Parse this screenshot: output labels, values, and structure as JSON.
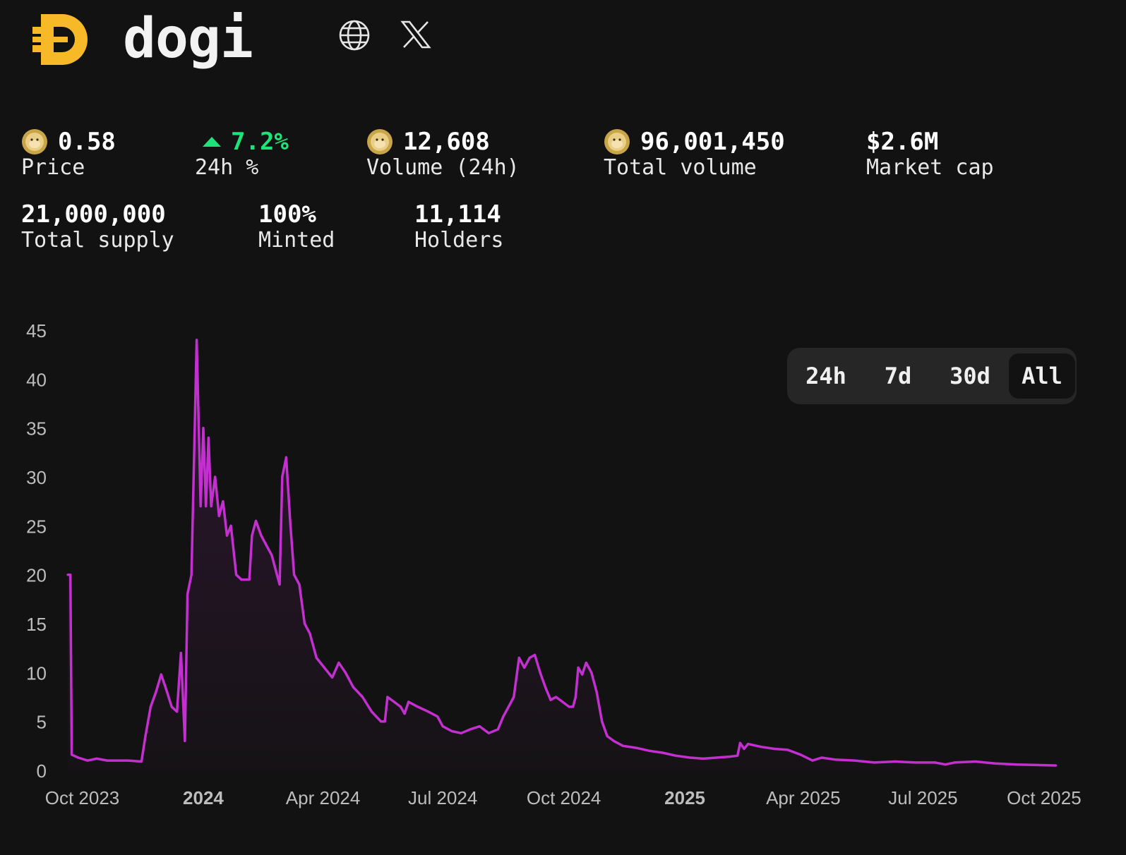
{
  "header": {
    "brand": "dogi",
    "logo_icon": "dogi-d-logo",
    "globe_icon": "globe-icon",
    "x_icon": "x-icon"
  },
  "stats": {
    "price": {
      "value": "0.58",
      "label": "Price"
    },
    "change": {
      "value": "7.2%",
      "label": "24h %",
      "color": "#1ee27a"
    },
    "volume24h": {
      "value": "12,608",
      "label": "Volume (24h)"
    },
    "total_volume": {
      "value": "96,001,450",
      "label": "Total volume"
    },
    "market_cap": {
      "value": "$2.6M",
      "label": "Market cap"
    },
    "total_supply": {
      "value": "21,000,000",
      "label": "Total supply"
    },
    "minted": {
      "value": "100%",
      "label": "Minted"
    },
    "holders": {
      "value": "11,114",
      "label": "Holders"
    }
  },
  "range": {
    "options": [
      "24h",
      "7d",
      "30d",
      "All"
    ],
    "selected": "All"
  },
  "chart_data": {
    "type": "area",
    "line_color": "#c42fd0",
    "grid": false,
    "legend": "none",
    "ylim": [
      0,
      45
    ],
    "yticks": [
      "0",
      "5",
      "10",
      "15",
      "20",
      "25",
      "30",
      "35",
      "40",
      "45"
    ],
    "xlim": [
      "2023-09-20",
      "2025-10-15"
    ],
    "xticks": [
      {
        "date": "2023-10-01",
        "label": "Oct 2023",
        "bold": false
      },
      {
        "date": "2024-01-01",
        "label": "2024",
        "bold": true
      },
      {
        "date": "2024-04-01",
        "label": "Apr 2024",
        "bold": false
      },
      {
        "date": "2024-07-01",
        "label": "Jul 2024",
        "bold": false
      },
      {
        "date": "2024-10-01",
        "label": "Oct 2024",
        "bold": false
      },
      {
        "date": "2025-01-01",
        "label": "2025",
        "bold": true
      },
      {
        "date": "2025-04-01",
        "label": "Apr 2025",
        "bold": false
      },
      {
        "date": "2025-07-01",
        "label": "Jul 2025",
        "bold": false
      },
      {
        "date": "2025-10-01",
        "label": "Oct 2025",
        "bold": false
      }
    ],
    "points": [
      [
        "2023-09-20",
        20
      ],
      [
        "2023-09-22",
        20
      ],
      [
        "2023-09-23",
        1.6
      ],
      [
        "2023-09-28",
        1.3
      ],
      [
        "2023-10-05",
        1.0
      ],
      [
        "2023-10-12",
        1.2
      ],
      [
        "2023-10-20",
        1.0
      ],
      [
        "2023-11-05",
        1.0
      ],
      [
        "2023-11-15",
        0.9
      ],
      [
        "2023-11-18",
        3.5
      ],
      [
        "2023-11-22",
        6.5
      ],
      [
        "2023-11-26",
        8.0
      ],
      [
        "2023-11-30",
        9.8
      ],
      [
        "2023-12-04",
        8.2
      ],
      [
        "2023-12-08",
        6.5
      ],
      [
        "2023-12-12",
        6.0
      ],
      [
        "2023-12-15",
        12.0
      ],
      [
        "2023-12-18",
        3.0
      ],
      [
        "2023-12-20",
        18.0
      ],
      [
        "2023-12-23",
        20.0
      ],
      [
        "2023-12-27",
        44.0
      ],
      [
        "2023-12-30",
        27.0
      ],
      [
        "2024-01-01",
        35.0
      ],
      [
        "2024-01-03",
        27.0
      ],
      [
        "2024-01-05",
        34.0
      ],
      [
        "2024-01-07",
        27.0
      ],
      [
        "2024-01-10",
        30.0
      ],
      [
        "2024-01-13",
        26.0
      ],
      [
        "2024-01-16",
        27.5
      ],
      [
        "2024-01-19",
        24.0
      ],
      [
        "2024-01-22",
        25.0
      ],
      [
        "2024-01-26",
        20.0
      ],
      [
        "2024-01-30",
        19.5
      ],
      [
        "2024-02-05",
        19.5
      ],
      [
        "2024-02-07",
        24.0
      ],
      [
        "2024-02-10",
        25.5
      ],
      [
        "2024-02-14",
        24.0
      ],
      [
        "2024-02-18",
        23.0
      ],
      [
        "2024-02-22",
        22.0
      ],
      [
        "2024-02-26",
        20.0
      ],
      [
        "2024-02-28",
        19.0
      ],
      [
        "2024-03-01",
        30.0
      ],
      [
        "2024-03-04",
        32.0
      ],
      [
        "2024-03-07",
        25.5
      ],
      [
        "2024-03-10",
        20.0
      ],
      [
        "2024-03-14",
        19.0
      ],
      [
        "2024-03-18",
        15.0
      ],
      [
        "2024-03-22",
        14.0
      ],
      [
        "2024-03-27",
        11.5
      ],
      [
        "2024-04-02",
        10.5
      ],
      [
        "2024-04-08",
        9.5
      ],
      [
        "2024-04-13",
        11.0
      ],
      [
        "2024-04-18",
        10.0
      ],
      [
        "2024-04-24",
        8.5
      ],
      [
        "2024-05-01",
        7.5
      ],
      [
        "2024-05-08",
        6.0
      ],
      [
        "2024-05-15",
        5.0
      ],
      [
        "2024-05-18",
        5.0
      ],
      [
        "2024-05-20",
        7.5
      ],
      [
        "2024-05-25",
        7.0
      ],
      [
        "2024-05-30",
        6.5
      ],
      [
        "2024-06-02",
        5.8
      ],
      [
        "2024-06-05",
        7.0
      ],
      [
        "2024-06-12",
        6.5
      ],
      [
        "2024-06-20",
        6.0
      ],
      [
        "2024-06-27",
        5.5
      ],
      [
        "2024-07-01",
        4.5
      ],
      [
        "2024-07-08",
        4.0
      ],
      [
        "2024-07-15",
        3.8
      ],
      [
        "2024-07-22",
        4.2
      ],
      [
        "2024-07-29",
        4.5
      ],
      [
        "2024-08-05",
        3.8
      ],
      [
        "2024-08-12",
        4.2
      ],
      [
        "2024-08-16",
        5.5
      ],
      [
        "2024-08-20",
        6.5
      ],
      [
        "2024-08-24",
        7.5
      ],
      [
        "2024-08-28",
        11.5
      ],
      [
        "2024-09-01",
        10.5
      ],
      [
        "2024-09-05",
        11.5
      ],
      [
        "2024-09-09",
        11.8
      ],
      [
        "2024-09-13",
        10.0
      ],
      [
        "2024-09-17",
        8.5
      ],
      [
        "2024-09-21",
        7.2
      ],
      [
        "2024-09-25",
        7.5
      ],
      [
        "2024-09-30",
        7.0
      ],
      [
        "2024-10-05",
        6.5
      ],
      [
        "2024-10-08",
        6.5
      ],
      [
        "2024-10-10",
        7.5
      ],
      [
        "2024-10-12",
        10.5
      ],
      [
        "2024-10-15",
        9.8
      ],
      [
        "2024-10-18",
        11.0
      ],
      [
        "2024-10-22",
        10.0
      ],
      [
        "2024-10-26",
        8.0
      ],
      [
        "2024-10-30",
        5.0
      ],
      [
        "2024-11-03",
        3.5
      ],
      [
        "2024-11-08",
        3.0
      ],
      [
        "2024-11-15",
        2.5
      ],
      [
        "2024-11-25",
        2.3
      ],
      [
        "2024-12-05",
        2.0
      ],
      [
        "2024-12-15",
        1.8
      ],
      [
        "2024-12-25",
        1.5
      ],
      [
        "2025-01-05",
        1.3
      ],
      [
        "2025-01-15",
        1.2
      ],
      [
        "2025-01-25",
        1.3
      ],
      [
        "2025-02-04",
        1.4
      ],
      [
        "2025-02-10",
        1.5
      ],
      [
        "2025-02-12",
        2.8
      ],
      [
        "2025-02-15",
        2.2
      ],
      [
        "2025-02-18",
        2.7
      ],
      [
        "2025-02-28",
        2.4
      ],
      [
        "2025-03-10",
        2.2
      ],
      [
        "2025-03-20",
        2.1
      ],
      [
        "2025-03-30",
        1.6
      ],
      [
        "2025-04-08",
        1.0
      ],
      [
        "2025-04-15",
        1.3
      ],
      [
        "2025-04-25",
        1.1
      ],
      [
        "2025-05-10",
        1.0
      ],
      [
        "2025-05-25",
        0.8
      ],
      [
        "2025-06-10",
        0.9
      ],
      [
        "2025-06-25",
        0.8
      ],
      [
        "2025-07-10",
        0.8
      ],
      [
        "2025-07-18",
        0.6
      ],
      [
        "2025-07-25",
        0.8
      ],
      [
        "2025-08-10",
        0.9
      ],
      [
        "2025-08-25",
        0.7
      ],
      [
        "2025-09-10",
        0.6
      ],
      [
        "2025-09-25",
        0.55
      ],
      [
        "2025-10-10",
        0.5
      ]
    ]
  }
}
